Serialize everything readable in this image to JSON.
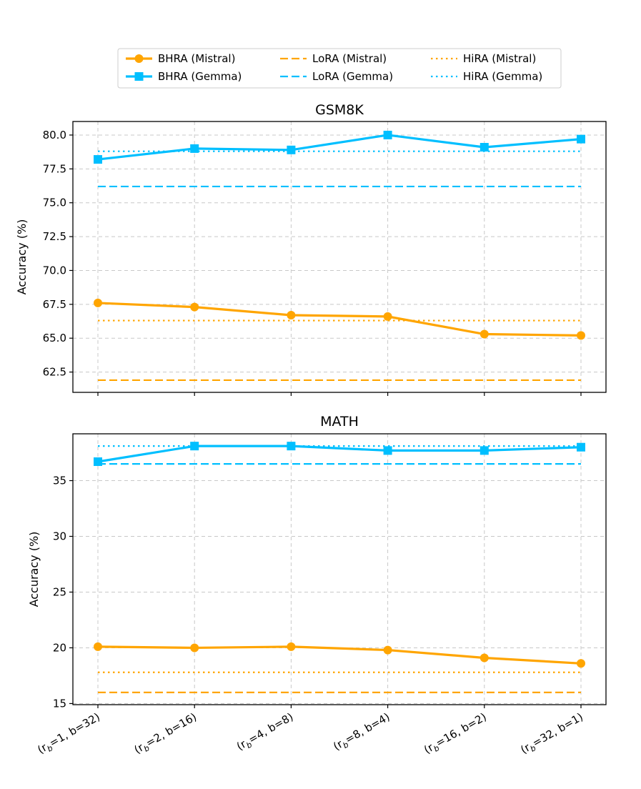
{
  "chart_data": {
    "type": "line",
    "categories": [
      {
        "sub": "b",
        "r": "1",
        "b": "32"
      },
      {
        "sub": "b",
        "r": "2",
        "b": "16"
      },
      {
        "sub": "b",
        "r": "4",
        "b": "8"
      },
      {
        "sub": "b",
        "r": "8",
        "b": "4"
      },
      {
        "sub": "b",
        "r": "16",
        "b": "2"
      },
      {
        "sub": "b",
        "r": "32",
        "b": "1"
      }
    ],
    "colors": {
      "mistral": "#FFA500",
      "gemma": "#00BFFF"
    },
    "legend": {
      "placement": "top-center",
      "entries": [
        {
          "label": "BHRA (Mistral)",
          "color": "#FFA500",
          "style": "solid",
          "marker": "circle"
        },
        {
          "label": "BHRA (Gemma)",
          "color": "#00BFFF",
          "style": "solid",
          "marker": "square"
        },
        {
          "label": "LoRA (Mistral)",
          "color": "#FFA500",
          "style": "dashed",
          "marker": "none"
        },
        {
          "label": "LoRA (Gemma)",
          "color": "#00BFFF",
          "style": "dashed",
          "marker": "none"
        },
        {
          "label": "HiRA (Mistral)",
          "color": "#FFA500",
          "style": "dotted",
          "marker": "none"
        },
        {
          "label": "HiRA (Gemma)",
          "color": "#00BFFF",
          "style": "dotted",
          "marker": "none"
        }
      ]
    },
    "panels": [
      {
        "title": "GSM8K",
        "ylabel": "Accuracy (%)",
        "ylim": [
          61.0,
          81.0
        ],
        "yticks": [
          62.5,
          65.0,
          67.5,
          70.0,
          72.5,
          75.0,
          77.5,
          80.0
        ],
        "ytick_decimals": 1,
        "grid": true,
        "series": [
          {
            "name": "BHRA (Mistral)",
            "color": "#FFA500",
            "style": "solid",
            "marker": "circle",
            "values": [
              67.6,
              67.3,
              66.7,
              66.6,
              65.3,
              65.2
            ]
          },
          {
            "name": "BHRA (Gemma)",
            "color": "#00BFFF",
            "style": "solid",
            "marker": "square",
            "values": [
              78.2,
              79.0,
              78.9,
              80.0,
              79.1,
              79.7
            ]
          }
        ],
        "baselines": [
          {
            "name": "LoRA (Mistral)",
            "color": "#FFA500",
            "style": "dashed",
            "value": 61.9
          },
          {
            "name": "LoRA (Gemma)",
            "color": "#00BFFF",
            "style": "dashed",
            "value": 76.2
          },
          {
            "name": "HiRA (Mistral)",
            "color": "#FFA500",
            "style": "dotted",
            "value": 66.3
          },
          {
            "name": "HiRA (Gemma)",
            "color": "#00BFFF",
            "style": "dotted",
            "value": 78.8
          }
        ]
      },
      {
        "title": "MATH",
        "xlabel": "",
        "ylabel": "Accuracy (%)",
        "ylim": [
          14.9,
          39.2
        ],
        "yticks": [
          15,
          20,
          25,
          30,
          35
        ],
        "ytick_decimals": 0,
        "grid": true,
        "series": [
          {
            "name": "BHRA (Mistral)",
            "color": "#FFA500",
            "style": "solid",
            "marker": "circle",
            "values": [
              20.1,
              20.0,
              20.1,
              19.8,
              19.1,
              18.6
            ]
          },
          {
            "name": "BHRA (Gemma)",
            "color": "#00BFFF",
            "style": "solid",
            "marker": "square",
            "values": [
              36.7,
              38.1,
              38.1,
              37.7,
              37.7,
              38.0
            ]
          }
        ],
        "baselines": [
          {
            "name": "LoRA (Mistral)",
            "color": "#FFA500",
            "style": "dashed",
            "value": 16.0
          },
          {
            "name": "LoRA (Gemma)",
            "color": "#00BFFF",
            "style": "dashed",
            "value": 36.5
          },
          {
            "name": "HiRA (Mistral)",
            "color": "#FFA500",
            "style": "dotted",
            "value": 17.8
          },
          {
            "name": "HiRA (Gemma)",
            "color": "#00BFFF",
            "style": "dotted",
            "value": 38.1
          }
        ]
      }
    ]
  }
}
